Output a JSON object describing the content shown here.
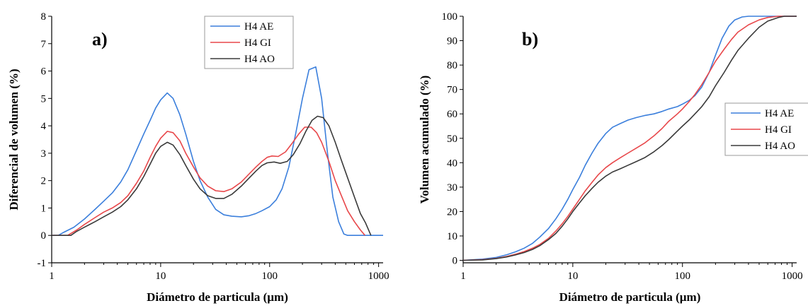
{
  "chart_data": [
    {
      "type": "line",
      "panel_label": "a)",
      "xlabel": "Diámetro de particula (µm)",
      "ylabel": "Diferencial de volumen (%)",
      "xscale": "log",
      "xlim": [
        1,
        1100
      ],
      "ylim": [
        -1,
        8
      ],
      "xticks": [
        1,
        10,
        100,
        1000
      ],
      "xtick_labels": [
        "1",
        "10",
        "100",
        "1000"
      ],
      "yticks": [
        -1,
        0,
        1,
        2,
        3,
        4,
        5,
        6,
        7,
        8
      ],
      "ytick_labels": [
        "-1",
        "0",
        "1",
        "2",
        "3",
        "4",
        "5",
        "6",
        "7",
        "8"
      ],
      "legend_position": "top-center",
      "series": [
        {
          "name": "H4 AE",
          "color": "#3b7fdc",
          "points": [
            [
              1,
              0
            ],
            [
              1.15,
              0
            ],
            [
              1.3,
              0.12
            ],
            [
              1.6,
              0.3
            ],
            [
              2,
              0.6
            ],
            [
              2.5,
              0.95
            ],
            [
              3,
              1.25
            ],
            [
              3.6,
              1.55
            ],
            [
              4.3,
              1.95
            ],
            [
              5,
              2.4
            ],
            [
              6,
              3.1
            ],
            [
              7,
              3.7
            ],
            [
              8,
              4.2
            ],
            [
              9,
              4.65
            ],
            [
              10,
              4.95
            ],
            [
              11.5,
              5.2
            ],
            [
              13,
              5.0
            ],
            [
              15,
              4.4
            ],
            [
              17,
              3.7
            ],
            [
              20,
              2.7
            ],
            [
              23,
              2.0
            ],
            [
              27,
              1.4
            ],
            [
              32,
              0.95
            ],
            [
              38,
              0.75
            ],
            [
              45,
              0.7
            ],
            [
              55,
              0.68
            ],
            [
              65,
              0.72
            ],
            [
              75,
              0.8
            ],
            [
              85,
              0.9
            ],
            [
              100,
              1.05
            ],
            [
              115,
              1.3
            ],
            [
              130,
              1.7
            ],
            [
              150,
              2.5
            ],
            [
              175,
              3.8
            ],
            [
              200,
              5.0
            ],
            [
              230,
              6.05
            ],
            [
              265,
              6.15
            ],
            [
              300,
              5.0
            ],
            [
              340,
              3.0
            ],
            [
              380,
              1.4
            ],
            [
              430,
              0.5
            ],
            [
              480,
              0.05
            ],
            [
              520,
              0
            ],
            [
              1000,
              0
            ],
            [
              1100,
              0
            ]
          ]
        },
        {
          "name": "H4 GI",
          "color": "#e8474a",
          "points": [
            [
              1,
              0
            ],
            [
              1.4,
              0
            ],
            [
              1.7,
              0.2
            ],
            [
              2,
              0.4
            ],
            [
              2.5,
              0.65
            ],
            [
              3,
              0.85
            ],
            [
              3.6,
              1.0
            ],
            [
              4.3,
              1.2
            ],
            [
              5,
              1.45
            ],
            [
              6,
              1.9
            ],
            [
              7,
              2.35
            ],
            [
              8,
              2.85
            ],
            [
              9,
              3.25
            ],
            [
              10,
              3.55
            ],
            [
              11.5,
              3.8
            ],
            [
              13,
              3.75
            ],
            [
              15,
              3.45
            ],
            [
              17,
              3.0
            ],
            [
              20,
              2.5
            ],
            [
              23,
              2.1
            ],
            [
              27,
              1.8
            ],
            [
              32,
              1.63
            ],
            [
              38,
              1.6
            ],
            [
              45,
              1.7
            ],
            [
              55,
              1.95
            ],
            [
              65,
              2.25
            ],
            [
              75,
              2.5
            ],
            [
              85,
              2.7
            ],
            [
              95,
              2.85
            ],
            [
              105,
              2.9
            ],
            [
              120,
              2.88
            ],
            [
              140,
              3.05
            ],
            [
              160,
              3.35
            ],
            [
              185,
              3.7
            ],
            [
              210,
              3.95
            ],
            [
              240,
              3.95
            ],
            [
              270,
              3.75
            ],
            [
              300,
              3.4
            ],
            [
              350,
              2.7
            ],
            [
              400,
              2.0
            ],
            [
              450,
              1.5
            ],
            [
              520,
              0.9
            ],
            [
              600,
              0.5
            ],
            [
              680,
              0.2
            ],
            [
              750,
              0
            ]
          ]
        },
        {
          "name": "H4 AO",
          "color": "#3a3a3a",
          "points": [
            [
              1,
              0
            ],
            [
              1.5,
              0
            ],
            [
              1.7,
              0.15
            ],
            [
              2,
              0.3
            ],
            [
              2.5,
              0.5
            ],
            [
              3,
              0.68
            ],
            [
              3.6,
              0.85
            ],
            [
              4.3,
              1.05
            ],
            [
              5,
              1.3
            ],
            [
              6,
              1.7
            ],
            [
              7,
              2.15
            ],
            [
              8,
              2.6
            ],
            [
              9,
              3.0
            ],
            [
              10,
              3.25
            ],
            [
              11.5,
              3.4
            ],
            [
              13,
              3.3
            ],
            [
              15,
              2.95
            ],
            [
              17,
              2.55
            ],
            [
              20,
              2.05
            ],
            [
              23,
              1.7
            ],
            [
              27,
              1.45
            ],
            [
              32,
              1.35
            ],
            [
              38,
              1.35
            ],
            [
              45,
              1.5
            ],
            [
              55,
              1.8
            ],
            [
              65,
              2.1
            ],
            [
              75,
              2.35
            ],
            [
              85,
              2.55
            ],
            [
              95,
              2.65
            ],
            [
              110,
              2.68
            ],
            [
              125,
              2.63
            ],
            [
              145,
              2.7
            ],
            [
              165,
              2.95
            ],
            [
              190,
              3.35
            ],
            [
              215,
              3.8
            ],
            [
              245,
              4.2
            ],
            [
              275,
              4.35
            ],
            [
              310,
              4.3
            ],
            [
              350,
              4.0
            ],
            [
              400,
              3.4
            ],
            [
              450,
              2.8
            ],
            [
              520,
              2.1
            ],
            [
              600,
              1.4
            ],
            [
              680,
              0.8
            ],
            [
              760,
              0.45
            ],
            [
              850,
              0
            ]
          ]
        }
      ]
    },
    {
      "type": "line",
      "panel_label": "b)",
      "xlabel": "Diámetro de particula (µm)",
      "ylabel": "Volumen acumulado (%)",
      "xscale": "log",
      "xlim": [
        1,
        1100
      ],
      "ylim": [
        -1,
        100
      ],
      "xticks": [
        1,
        10,
        100,
        1000
      ],
      "xtick_labels": [
        "1",
        "10",
        "100",
        "1000"
      ],
      "yticks": [
        0,
        10,
        20,
        30,
        40,
        50,
        60,
        70,
        80,
        90,
        100
      ],
      "ytick_labels": [
        "0",
        "10",
        "20",
        "30",
        "40",
        "50",
        "60",
        "70",
        "80",
        "90",
        "100"
      ],
      "legend_position": "right",
      "series": [
        {
          "name": "H4 AE",
          "color": "#3b7fdc",
          "points": [
            [
              1,
              0
            ],
            [
              1.5,
              0.5
            ],
            [
              2,
              1.2
            ],
            [
              2.5,
              2.3
            ],
            [
              3,
              3.5
            ],
            [
              3.6,
              5
            ],
            [
              4.3,
              7
            ],
            [
              5,
              9.5
            ],
            [
              6,
              13
            ],
            [
              7,
              17
            ],
            [
              8,
              21
            ],
            [
              9,
              25
            ],
            [
              10,
              29
            ],
            [
              11.5,
              34
            ],
            [
              13,
              39
            ],
            [
              15,
              44
            ],
            [
              17,
              48
            ],
            [
              20,
              52
            ],
            [
              23,
              54.5
            ],
            [
              27,
              56
            ],
            [
              32,
              57.5
            ],
            [
              38,
              58.5
            ],
            [
              45,
              59.3
            ],
            [
              55,
              60
            ],
            [
              65,
              61
            ],
            [
              75,
              62
            ],
            [
              90,
              63
            ],
            [
              100,
              64
            ],
            [
              115,
              65.5
            ],
            [
              130,
              67.5
            ],
            [
              150,
              71
            ],
            [
              175,
              77
            ],
            [
              200,
              84
            ],
            [
              230,
              91
            ],
            [
              265,
              96
            ],
            [
              300,
              98.5
            ],
            [
              350,
              99.7
            ],
            [
              400,
              100
            ],
            [
              1000,
              100
            ],
            [
              1100,
              100
            ]
          ]
        },
        {
          "name": "H4 GI",
          "color": "#e8474a",
          "points": [
            [
              1,
              0
            ],
            [
              1.5,
              0.3
            ],
            [
              2,
              0.8
            ],
            [
              2.5,
              1.6
            ],
            [
              3,
              2.5
            ],
            [
              3.6,
              3.6
            ],
            [
              4.3,
              5
            ],
            [
              5,
              6.5
            ],
            [
              6,
              9
            ],
            [
              7,
              12
            ],
            [
              8,
              15
            ],
            [
              9,
              18
            ],
            [
              10,
              21
            ],
            [
              11.5,
              25
            ],
            [
              13,
              28.5
            ],
            [
              15,
              32
            ],
            [
              17,
              35
            ],
            [
              20,
              38
            ],
            [
              23,
              40
            ],
            [
              27,
              42
            ],
            [
              32,
              44
            ],
            [
              38,
              46
            ],
            [
              45,
              48
            ],
            [
              55,
              51
            ],
            [
              65,
              54
            ],
            [
              75,
              57
            ],
            [
              90,
              60
            ],
            [
              100,
              62
            ],
            [
              115,
              65
            ],
            [
              130,
              68
            ],
            [
              150,
              72
            ],
            [
              175,
              77
            ],
            [
              200,
              81.5
            ],
            [
              240,
              86.5
            ],
            [
              280,
              90.5
            ],
            [
              320,
              93.5
            ],
            [
              400,
              96.5
            ],
            [
              500,
              98.5
            ],
            [
              600,
              99.5
            ],
            [
              750,
              100
            ],
            [
              1100,
              100
            ]
          ]
        },
        {
          "name": "H4 AO",
          "color": "#3a3a3a",
          "points": [
            [
              1,
              0
            ],
            [
              1.5,
              0.2
            ],
            [
              2,
              0.7
            ],
            [
              2.5,
              1.4
            ],
            [
              3,
              2.2
            ],
            [
              3.6,
              3.2
            ],
            [
              4.3,
              4.5
            ],
            [
              5,
              6
            ],
            [
              6,
              8.5
            ],
            [
              7,
              11
            ],
            [
              8,
              14
            ],
            [
              9,
              17
            ],
            [
              10,
              20
            ],
            [
              11.5,
              23.5
            ],
            [
              13,
              26.5
            ],
            [
              15,
              29.5
            ],
            [
              17,
              32
            ],
            [
              20,
              34.5
            ],
            [
              23,
              36.2
            ],
            [
              27,
              37.5
            ],
            [
              32,
              39
            ],
            [
              38,
              40.5
            ],
            [
              45,
              42
            ],
            [
              55,
              44.5
            ],
            [
              65,
              47
            ],
            [
              75,
              49.5
            ],
            [
              90,
              53
            ],
            [
              100,
              55
            ],
            [
              115,
              57.5
            ],
            [
              130,
              60
            ],
            [
              150,
              63
            ],
            [
              175,
              67
            ],
            [
              200,
              71.5
            ],
            [
              240,
              77
            ],
            [
              280,
              82
            ],
            [
              320,
              86
            ],
            [
              400,
              91
            ],
            [
              500,
              95.5
            ],
            [
              600,
              98
            ],
            [
              750,
              99.5
            ],
            [
              850,
              100
            ],
            [
              1100,
              100
            ]
          ]
        }
      ]
    }
  ]
}
